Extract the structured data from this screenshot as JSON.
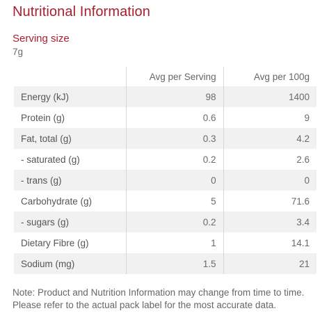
{
  "title": "Nutritional Information",
  "serving": {
    "label": "Serving size",
    "value": "7g"
  },
  "table": {
    "headers": [
      "",
      "Avg per Serving",
      "Avg per 100g"
    ],
    "rows": [
      {
        "nutrient": "Energy (kJ)",
        "per_serving": "98",
        "per_100g": "1400"
      },
      {
        "nutrient": "Protein (g)",
        "per_serving": "0.6",
        "per_100g": "9"
      },
      {
        "nutrient": "Fat, total (g)",
        "per_serving": "0.3",
        "per_100g": "4.2"
      },
      {
        "nutrient": "- saturated (g)",
        "per_serving": "0.2",
        "per_100g": "2.6"
      },
      {
        "nutrient": "- trans (g)",
        "per_serving": "0",
        "per_100g": "0"
      },
      {
        "nutrient": "Carbohydrate (g)",
        "per_serving": "5",
        "per_100g": "71.6"
      },
      {
        "nutrient": "- sugars (g)",
        "per_serving": "0.2",
        "per_100g": "3.4"
      },
      {
        "nutrient": "Dietary Fibre (g)",
        "per_serving": "1",
        "per_100g": "14.1"
      },
      {
        "nutrient": "Sodium (mg)",
        "per_serving": "1.5",
        "per_100g": "21"
      }
    ]
  },
  "note": "Note: Product and Nutrition Information may change from time to time. Please refer to the actual pack label for the most accurate data.",
  "colors": {
    "accent": "#a8202e",
    "row_stripe": "#f1f1f1",
    "text": "#5a5a5a"
  }
}
